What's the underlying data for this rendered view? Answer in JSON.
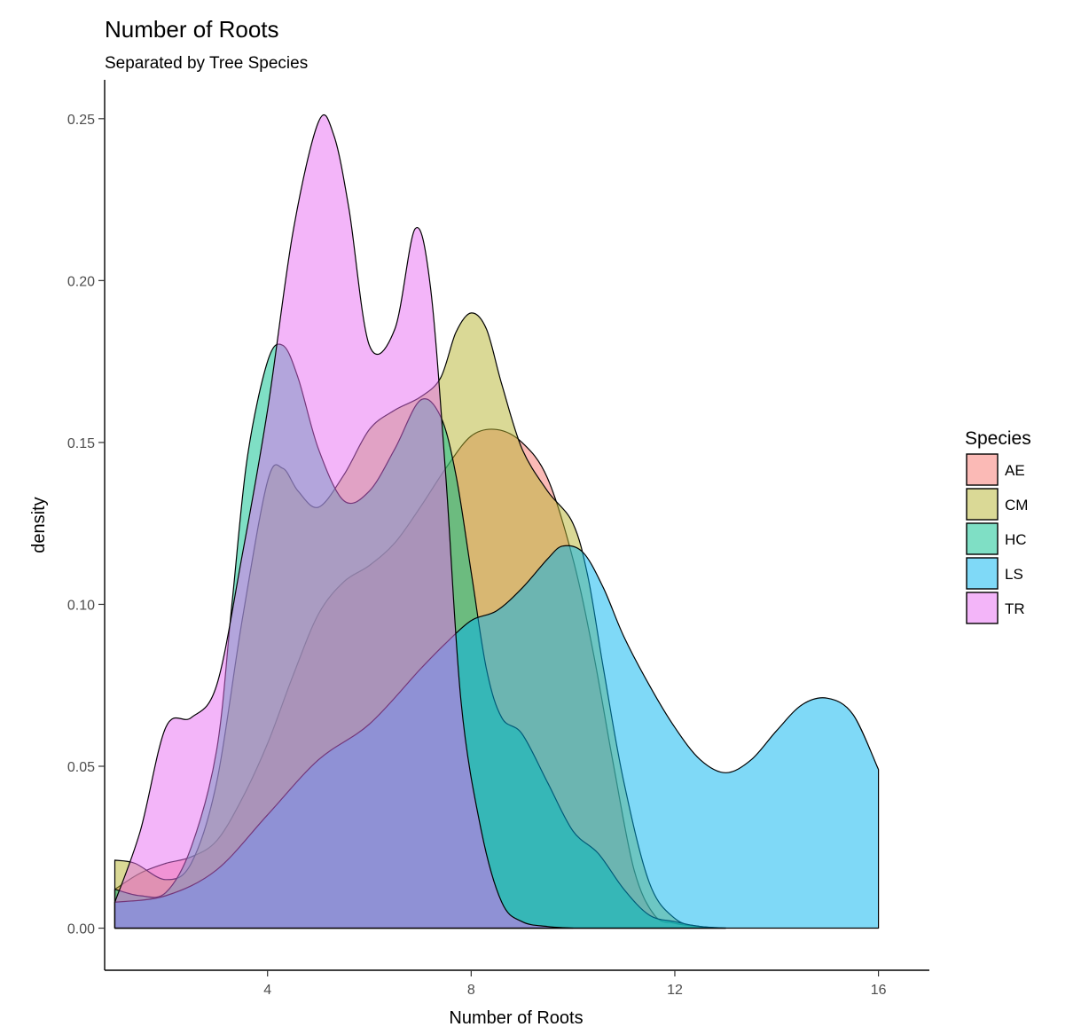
{
  "chart_data": {
    "type": "area",
    "subtype": "density",
    "title": "Number of Roots",
    "subtitle": "Separated by Tree Species",
    "xlabel": "Number of Roots",
    "ylabel": "density",
    "xlim": [
      0.8,
      17.0
    ],
    "ylim": [
      -0.013,
      0.262
    ],
    "x_ticks": [
      4,
      8,
      12,
      16
    ],
    "x_tick_labels": [
      "4",
      "8",
      "12",
      "16"
    ],
    "y_ticks": [
      0,
      0.05,
      0.1,
      0.15,
      0.2,
      0.25
    ],
    "y_tick_labels": [
      "0.00",
      "0.05",
      "0.10",
      "0.15",
      "0.20",
      "0.25"
    ],
    "grid": false,
    "legend": {
      "title": "Species",
      "position": "right"
    },
    "series": [
      {
        "name": "AE",
        "color": "#F8766D",
        "points": [
          [
            1,
            0.012
          ],
          [
            1.5,
            0.017
          ],
          [
            2,
            0.02
          ],
          [
            2.5,
            0.022
          ],
          [
            3,
            0.027
          ],
          [
            3.5,
            0.04
          ],
          [
            4,
            0.057
          ],
          [
            4.5,
            0.078
          ],
          [
            5,
            0.097
          ],
          [
            5.5,
            0.107
          ],
          [
            6,
            0.112
          ],
          [
            6.5,
            0.119
          ],
          [
            7,
            0.13
          ],
          [
            7.5,
            0.142
          ],
          [
            8,
            0.152
          ],
          [
            8.5,
            0.154
          ],
          [
            9,
            0.15
          ],
          [
            9.5,
            0.139
          ],
          [
            10,
            0.114
          ],
          [
            10.4,
            0.085
          ],
          [
            10.8,
            0.05
          ],
          [
            11.2,
            0.018
          ],
          [
            11.6,
            0.004
          ],
          [
            12,
            0.0015
          ],
          [
            12.5,
            0.0005
          ],
          [
            13,
            0
          ]
        ]
      },
      {
        "name": "CM",
        "color": "#B5B32E",
        "points": [
          [
            1,
            0.021
          ],
          [
            1.4,
            0.02
          ],
          [
            2,
            0.015
          ],
          [
            2.5,
            0.02
          ],
          [
            3,
            0.045
          ],
          [
            3.5,
            0.095
          ],
          [
            4,
            0.138
          ],
          [
            4.3,
            0.142
          ],
          [
            4.6,
            0.135
          ],
          [
            5,
            0.13
          ],
          [
            5.5,
            0.14
          ],
          [
            6,
            0.154
          ],
          [
            6.5,
            0.16
          ],
          [
            7,
            0.164
          ],
          [
            7.4,
            0.17
          ],
          [
            7.7,
            0.184
          ],
          [
            8,
            0.19
          ],
          [
            8.3,
            0.185
          ],
          [
            8.6,
            0.168
          ],
          [
            9,
            0.148
          ],
          [
            9.5,
            0.135
          ],
          [
            10,
            0.125
          ],
          [
            10.3,
            0.108
          ],
          [
            10.6,
            0.08
          ],
          [
            11,
            0.045
          ],
          [
            11.5,
            0.014
          ],
          [
            12,
            0.003
          ],
          [
            12.5,
            0.0005
          ],
          [
            13,
            0
          ]
        ]
      },
      {
        "name": "HC",
        "color": "#00C08B",
        "points": [
          [
            1,
            0.012
          ],
          [
            1.5,
            0.01
          ],
          [
            2,
            0.011
          ],
          [
            2.5,
            0.025
          ],
          [
            3,
            0.055
          ],
          [
            3.3,
            0.1
          ],
          [
            3.6,
            0.145
          ],
          [
            4,
            0.175
          ],
          [
            4.3,
            0.18
          ],
          [
            4.6,
            0.17
          ],
          [
            5,
            0.148
          ],
          [
            5.5,
            0.132
          ],
          [
            6,
            0.135
          ],
          [
            6.5,
            0.148
          ],
          [
            7,
            0.163
          ],
          [
            7.4,
            0.158
          ],
          [
            7.7,
            0.14
          ],
          [
            8,
            0.11
          ],
          [
            8.3,
            0.08
          ],
          [
            8.6,
            0.065
          ],
          [
            9,
            0.06
          ],
          [
            9.5,
            0.045
          ],
          [
            10,
            0.03
          ],
          [
            10.5,
            0.023
          ],
          [
            11,
            0.012
          ],
          [
            11.5,
            0.004
          ],
          [
            12,
            0.002
          ],
          [
            12.5,
            0.0005
          ],
          [
            13,
            0
          ]
        ]
      },
      {
        "name": "LS",
        "color": "#00B4EF",
        "points": [
          [
            1,
            0.008
          ],
          [
            2,
            0.01
          ],
          [
            3,
            0.018
          ],
          [
            4,
            0.035
          ],
          [
            5,
            0.052
          ],
          [
            6,
            0.063
          ],
          [
            7,
            0.08
          ],
          [
            7.5,
            0.088
          ],
          [
            8,
            0.095
          ],
          [
            8.5,
            0.098
          ],
          [
            9,
            0.105
          ],
          [
            9.5,
            0.114
          ],
          [
            9.8,
            0.118
          ],
          [
            10.2,
            0.116
          ],
          [
            10.6,
            0.105
          ],
          [
            11,
            0.09
          ],
          [
            11.5,
            0.075
          ],
          [
            12,
            0.062
          ],
          [
            12.5,
            0.052
          ],
          [
            13,
            0.048
          ],
          [
            13.5,
            0.052
          ],
          [
            14,
            0.061
          ],
          [
            14.5,
            0.069
          ],
          [
            15,
            0.071
          ],
          [
            15.5,
            0.066
          ],
          [
            16,
            0.049
          ]
        ]
      },
      {
        "name": "TR",
        "color": "#E76BF3",
        "points": [
          [
            1,
            0.008
          ],
          [
            1.5,
            0.03
          ],
          [
            2,
            0.062
          ],
          [
            2.5,
            0.065
          ],
          [
            3,
            0.075
          ],
          [
            3.5,
            0.115
          ],
          [
            4,
            0.16
          ],
          [
            4.5,
            0.215
          ],
          [
            5,
            0.249
          ],
          [
            5.3,
            0.245
          ],
          [
            5.6,
            0.222
          ],
          [
            6,
            0.18
          ],
          [
            6.5,
            0.185
          ],
          [
            6.9,
            0.216
          ],
          [
            7.2,
            0.198
          ],
          [
            7.5,
            0.14
          ],
          [
            7.8,
            0.07
          ],
          [
            8.2,
            0.03
          ],
          [
            8.6,
            0.008
          ],
          [
            9,
            0.002
          ],
          [
            9.5,
            0.0005
          ],
          [
            10,
            0
          ]
        ]
      }
    ]
  }
}
